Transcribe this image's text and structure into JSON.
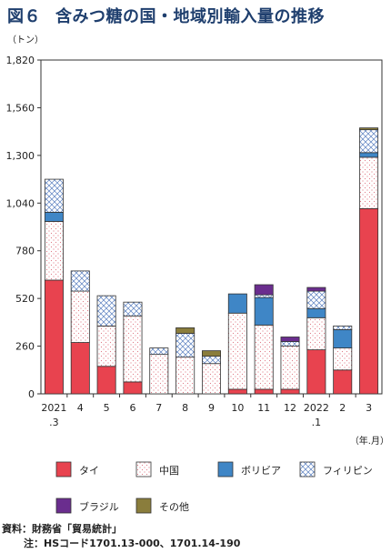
{
  "title": {
    "figure_no": "図６",
    "text": "含みつ糖の国・地域別輸入量の推移"
  },
  "source": {
    "line1": "資料：財務省「貿易統計」",
    "line2": "注：HSコード1701.13-000、1701.14-190"
  },
  "colors": {
    "タイ": "#e8434f",
    "中国": "#ffffff",
    "ボリビア": "#3f86c6",
    "フィリピン": "#ffffff",
    "ブラジル": "#6a2d8e",
    "その他": "#8a7d3c"
  },
  "chart_data": {
    "type": "bar",
    "stacked": true,
    "title": "含みつ糖の国・地域別輸入量の推移",
    "ylabel": "（トン）",
    "xlabel": "（年.月）",
    "ylim": [
      0,
      1820
    ],
    "yticks": [
      0,
      260,
      520,
      780,
      1040,
      1300,
      1560,
      1820
    ],
    "ytick_labels": [
      "0",
      "260",
      "520",
      "780",
      "1,040",
      "1,300",
      "1,560",
      "1,820"
    ],
    "categories": [
      "2021.3",
      "4",
      "5",
      "6",
      "7",
      "8",
      "9",
      "10",
      "11",
      "12",
      "2022.1",
      "2",
      "3"
    ],
    "category_labels": [
      [
        "2021",
        ".3"
      ],
      [
        "4"
      ],
      [
        "5"
      ],
      [
        "6"
      ],
      [
        "7"
      ],
      [
        "8"
      ],
      [
        "9"
      ],
      [
        "10"
      ],
      [
        "11"
      ],
      [
        "12"
      ],
      [
        "2022",
        ".1"
      ],
      [
        "2"
      ],
      [
        "3"
      ]
    ],
    "series": [
      {
        "name": "タイ",
        "values": [
          620,
          280,
          150,
          65,
          0,
          0,
          0,
          25,
          25,
          25,
          240,
          130,
          1010
        ]
      },
      {
        "name": "中国",
        "values": [
          320,
          280,
          220,
          360,
          215,
          200,
          165,
          415,
          350,
          235,
          175,
          120,
          280
        ]
      },
      {
        "name": "ボリビア",
        "values": [
          50,
          0,
          0,
          0,
          0,
          0,
          0,
          105,
          150,
          0,
          50,
          100,
          25
        ]
      },
      {
        "name": "フィリピン",
        "values": [
          180,
          110,
          165,
          75,
          35,
          130,
          40,
          0,
          15,
          25,
          95,
          20,
          125
        ]
      },
      {
        "name": "ブラジル",
        "values": [
          0,
          0,
          0,
          0,
          0,
          0,
          0,
          0,
          55,
          25,
          20,
          0,
          0
        ]
      },
      {
        "name": "その他",
        "values": [
          0,
          0,
          0,
          0,
          0,
          30,
          30,
          0,
          0,
          0,
          0,
          0,
          10
        ]
      }
    ],
    "grid": false,
    "legend_position": "bottom"
  }
}
